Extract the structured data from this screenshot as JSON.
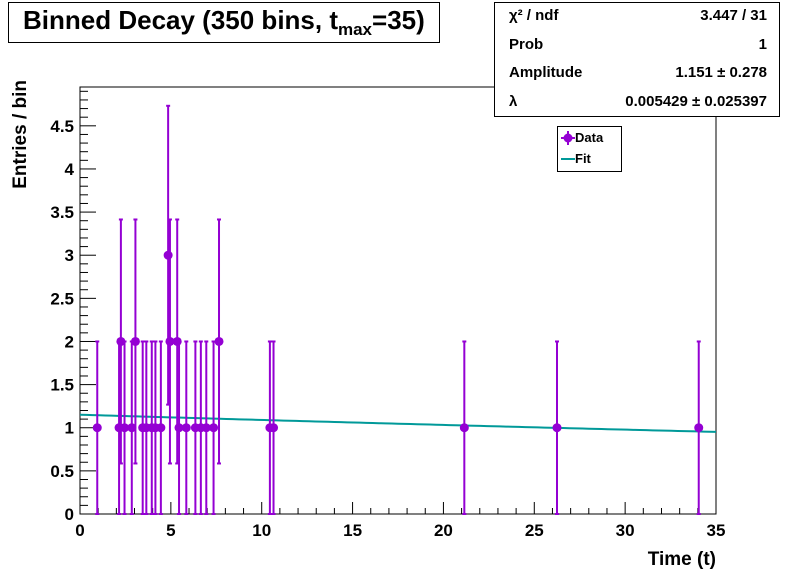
{
  "title": {
    "main": "Binned Decay (350 bins, t",
    "subscript": "max",
    "suffix": "=35)"
  },
  "stats": [
    {
      "label": "χ² / ndf",
      "value": "3.447 / 31"
    },
    {
      "label": "Prob",
      "value": "1"
    },
    {
      "label": "Amplitude",
      "value": "1.151 ± 0.278"
    },
    {
      "label": "λ",
      "value": "0.005429 ± 0.025397"
    }
  ],
  "legend": {
    "data_label": "Data",
    "fit_label": "Fit"
  },
  "colors": {
    "data": "#9400D3",
    "fit": "#009999"
  },
  "chart_data": {
    "type": "scatter",
    "title": "Binned Decay (350 bins, t_max=35)",
    "xlabel": "Time (t)",
    "ylabel": "Entries / bin",
    "xlim": [
      0,
      35
    ],
    "ylim": [
      0,
      4.95
    ],
    "x_ticks": [
      0,
      5,
      10,
      15,
      20,
      25,
      30,
      35
    ],
    "y_ticks": [
      0,
      0.5,
      1,
      1.5,
      2,
      2.5,
      3,
      3.5,
      4,
      4.5
    ],
    "x_tick_labels": [
      "0",
      "5",
      "10",
      "15",
      "20",
      "25",
      "30",
      "35"
    ],
    "y_tick_labels": [
      "0",
      "0.5",
      "1",
      "1.5",
      "2",
      "2.5",
      "3",
      "3.5",
      "4",
      "4.5"
    ],
    "grid": false,
    "legend_position": "top-right",
    "series": [
      {
        "name": "Data",
        "type": "points_with_errors",
        "points": [
          {
            "x": 0.95,
            "y": 1
          },
          {
            "x": 2.15,
            "y": 1
          },
          {
            "x": 2.25,
            "y": 2
          },
          {
            "x": 2.45,
            "y": 1
          },
          {
            "x": 2.85,
            "y": 1
          },
          {
            "x": 3.05,
            "y": 2
          },
          {
            "x": 3.45,
            "y": 1
          },
          {
            "x": 3.65,
            "y": 1
          },
          {
            "x": 3.95,
            "y": 1
          },
          {
            "x": 4.15,
            "y": 1
          },
          {
            "x": 4.45,
            "y": 1
          },
          {
            "x": 4.85,
            "y": 3
          },
          {
            "x": 4.95,
            "y": 2
          },
          {
            "x": 5.35,
            "y": 2
          },
          {
            "x": 5.45,
            "y": 1
          },
          {
            "x": 5.85,
            "y": 1
          },
          {
            "x": 6.35,
            "y": 1
          },
          {
            "x": 6.65,
            "y": 1
          },
          {
            "x": 6.95,
            "y": 1
          },
          {
            "x": 7.35,
            "y": 1
          },
          {
            "x": 7.65,
            "y": 2
          },
          {
            "x": 10.45,
            "y": 1
          },
          {
            "x": 10.65,
            "y": 1
          },
          {
            "x": 21.15,
            "y": 1
          },
          {
            "x": 26.25,
            "y": 1
          },
          {
            "x": 34.05,
            "y": 1
          }
        ]
      },
      {
        "name": "Fit",
        "type": "line",
        "function": "exponential",
        "amplitude": 1.151,
        "lambda": 0.005429,
        "x_range": [
          0,
          35
        ]
      }
    ]
  }
}
